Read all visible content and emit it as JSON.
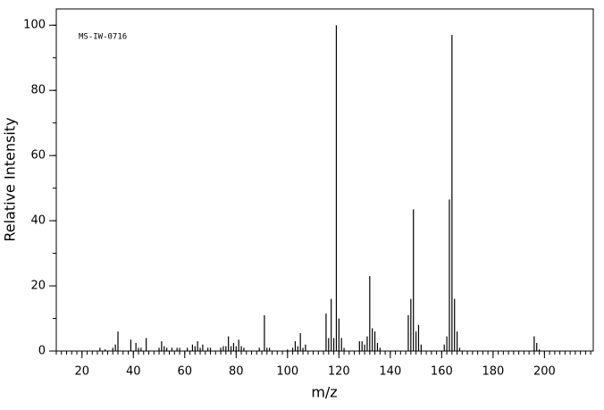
{
  "chart_data": {
    "type": "bar",
    "annotation": "MS-IW-0716",
    "x_label": "m/z",
    "y_label": "Relative Intensity",
    "x": [
      27,
      29,
      32,
      33,
      34,
      39,
      41,
      42,
      43,
      45,
      50,
      51,
      52,
      53,
      55,
      57,
      58,
      61,
      63,
      64,
      65,
      66,
      67,
      69,
      70,
      74,
      75,
      76,
      77,
      78,
      79,
      80,
      81,
      82,
      83,
      89,
      91,
      92,
      93,
      100,
      102,
      103,
      104,
      105,
      106,
      107,
      115,
      116,
      117,
      118,
      119,
      120,
      121,
      122,
      128,
      129,
      130,
      131,
      132,
      133,
      134,
      135,
      136,
      147,
      148,
      149,
      150,
      151,
      152,
      161,
      162,
      163,
      164,
      165,
      166,
      167,
      196,
      197,
      198
    ],
    "values": [
      1,
      0.5,
      1,
      2,
      6,
      3.5,
      2.5,
      1,
      1,
      4,
      1,
      3,
      1.5,
      1,
      1,
      1,
      1,
      1,
      2,
      1.5,
      3,
      1,
      2,
      1,
      1,
      1,
      1.5,
      1.5,
      4.5,
      1.5,
      2.5,
      1.5,
      3.5,
      1.5,
      1,
      1,
      11,
      1,
      1,
      0.5,
      1,
      3,
      1.5,
      5.5,
      1,
      2,
      11.5,
      4,
      16,
      4,
      100,
      10,
      4,
      1,
      3,
      3,
      2,
      4.5,
      23,
      7,
      6,
      2.5,
      1,
      11,
      16,
      43.5,
      6,
      8,
      2,
      2,
      4.5,
      46.5,
      97,
      16,
      6,
      1,
      4.5,
      2.5,
      0.5
    ],
    "color": "#000000",
    "xlim": [
      10,
      219
    ],
    "ylim": [
      0,
      105
    ],
    "xticks": [
      20,
      40,
      60,
      80,
      100,
      120,
      140,
      160,
      180,
      200
    ],
    "yticks": [
      0,
      20,
      40,
      60,
      80,
      100
    ]
  }
}
